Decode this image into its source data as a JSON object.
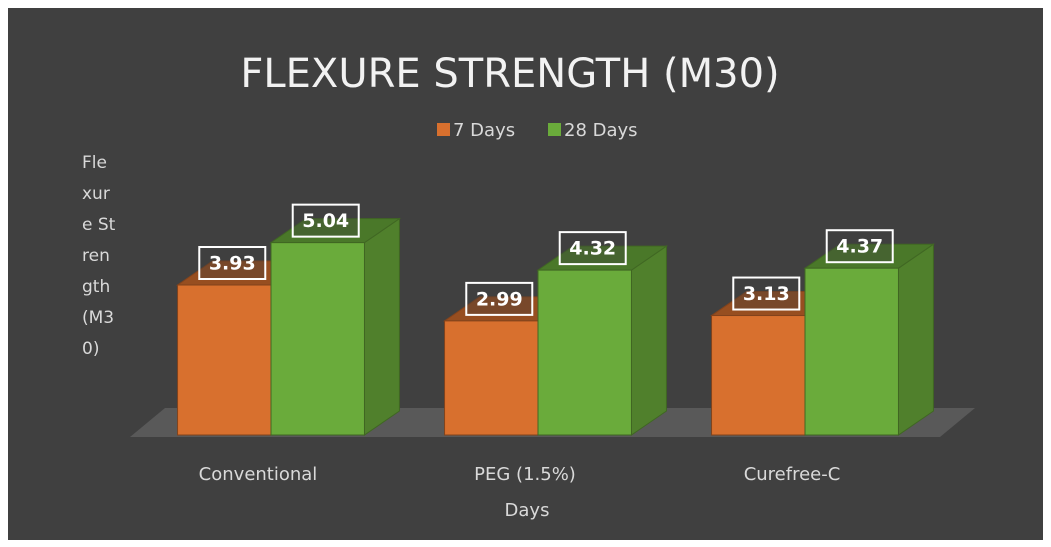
{
  "chart_data": {
    "type": "bar3d",
    "title": "FLEXURE STRENGTH (M30)",
    "x_label": "Days",
    "y_label": "Flexure Strength (M30)",
    "categories": [
      "Conventional",
      "PEG (1.5%)",
      "Curefree-C"
    ],
    "series": [
      {
        "name": "7 Days",
        "color": "#d8702e",
        "values": [
          3.93,
          2.99,
          3.13
        ]
      },
      {
        "name": "28 Days",
        "color": "#6aab3b",
        "values": [
          5.04,
          4.32,
          4.37
        ]
      }
    ],
    "ylim": [
      0,
      6
    ],
    "legend": "top"
  }
}
